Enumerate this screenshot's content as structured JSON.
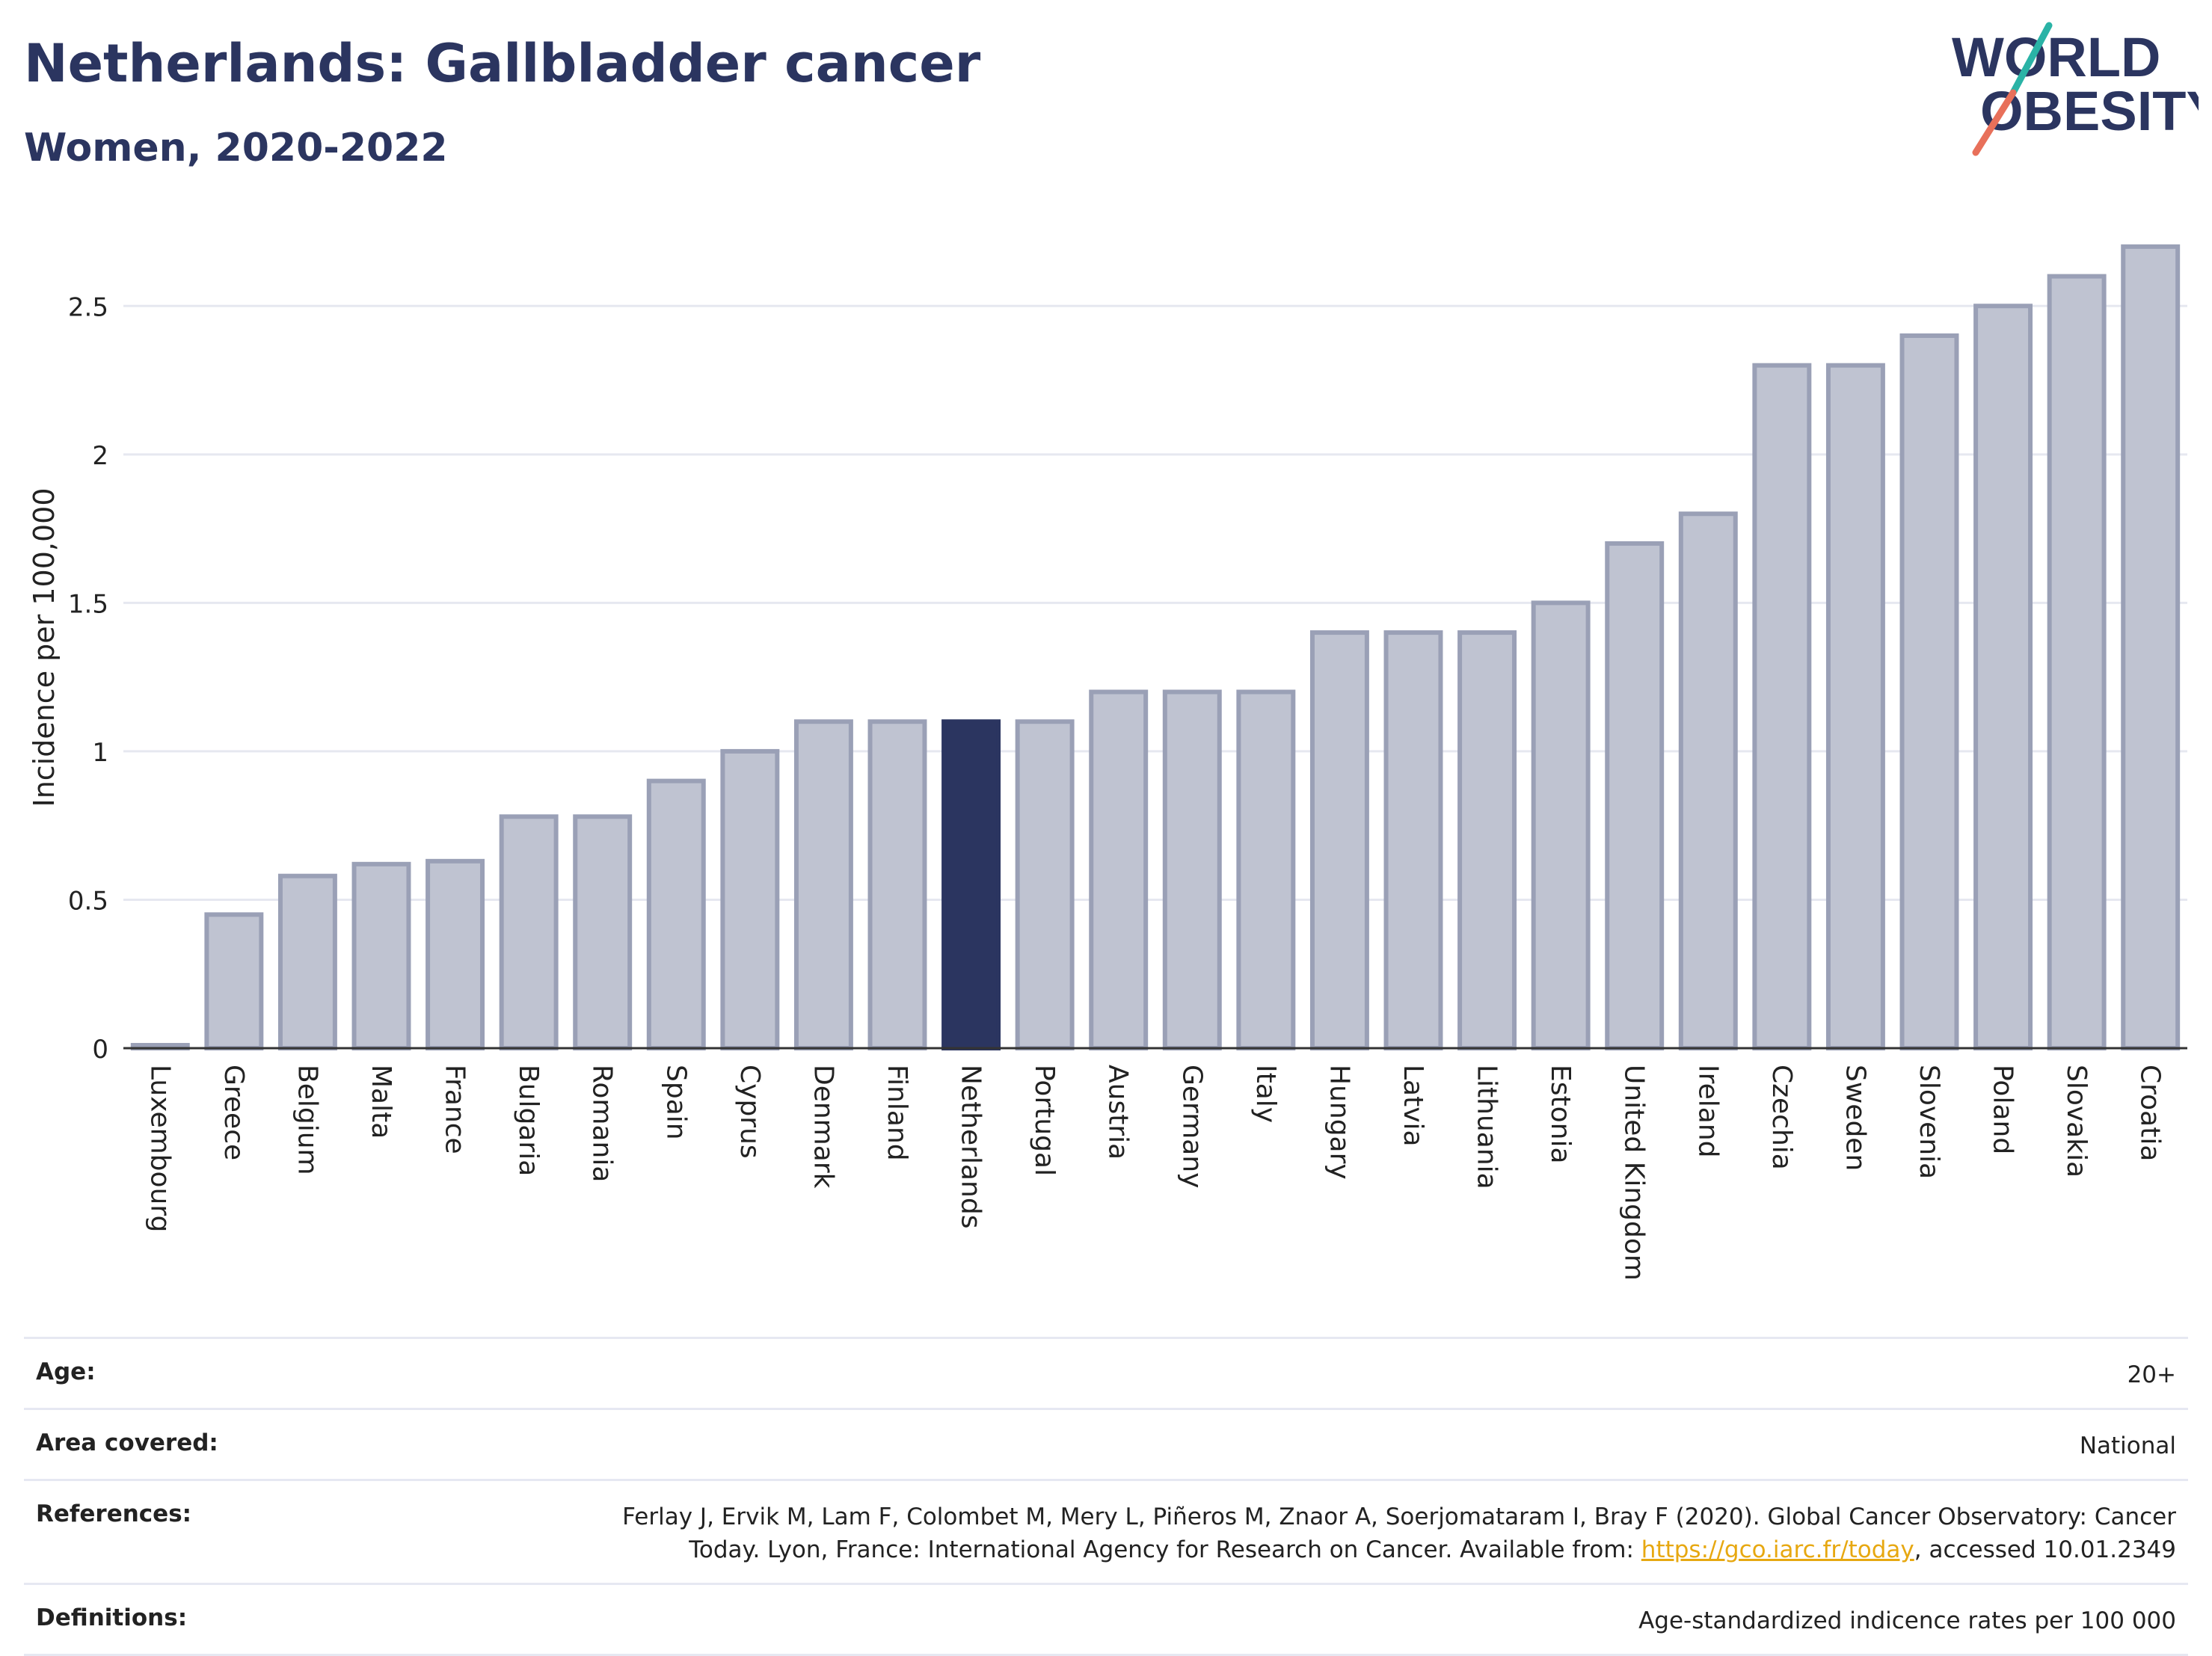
{
  "header": {
    "title": "Netherlands: Gallbladder cancer",
    "subtitle": "Women, 2020-2022"
  },
  "logo": {
    "line1": "WORLD",
    "line2": "OBESITY"
  },
  "colors": {
    "bar": "#bfc3d1",
    "bar_stroke": "#9aa0b6",
    "highlight": "#2b3560",
    "text": "#2b3560",
    "link": "#e7a811",
    "slash_top": "#2ab3a6",
    "slash_bottom": "#e8705a"
  },
  "chart_data": {
    "type": "bar",
    "ylabel": "Incidence per 100,000",
    "ylim": [
      0,
      2.75
    ],
    "yticks": [
      0,
      0.5,
      1,
      1.5,
      2,
      2.5
    ],
    "ytick_labels": [
      "0",
      "0.5",
      "1",
      "1.5",
      "2",
      "2.5"
    ],
    "highlight": "Netherlands",
    "categories": [
      "Luxembourg",
      "Greece",
      "Belgium",
      "Malta",
      "France",
      "Bulgaria",
      "Romania",
      "Spain",
      "Cyprus",
      "Denmark",
      "Finland",
      "Netherlands",
      "Portugal",
      "Austria",
      "Germany",
      "Italy",
      "Hungary",
      "Latvia",
      "Lithuania",
      "Estonia",
      "United Kingdom",
      "Ireland",
      "Czechia",
      "Sweden",
      "Slovenia",
      "Poland",
      "Slovakia",
      "Croatia"
    ],
    "values": [
      0.01,
      0.45,
      0.58,
      0.62,
      0.63,
      0.78,
      0.78,
      0.9,
      1.0,
      1.1,
      1.1,
      1.1,
      1.1,
      1.2,
      1.2,
      1.2,
      1.4,
      1.4,
      1.4,
      1.5,
      1.7,
      1.8,
      2.3,
      2.3,
      2.4,
      2.5,
      2.6,
      2.7
    ],
    "grid": true
  },
  "meta": {
    "age_label": "Age:",
    "age_value": "20+",
    "area_label": "Area covered:",
    "area_value": "National",
    "references_label": "References:",
    "references_line1": "Ferlay J, Ervik M, Lam F, Colombet M, Mery L, Piñeros M, Znaor A, Soerjomataram I, Bray F (2020). Global Cancer Observatory: Cancer",
    "references_line2_prefix": "Today. Lyon, France: International Agency for Research on Cancer. Available from: ",
    "references_link": "https://gco.iarc.fr/today",
    "references_line2_suffix": ", accessed 10.01.2349",
    "definitions_label": "Definitions:",
    "definitions_value": "Age-standardized indicence rates per 100 000"
  }
}
